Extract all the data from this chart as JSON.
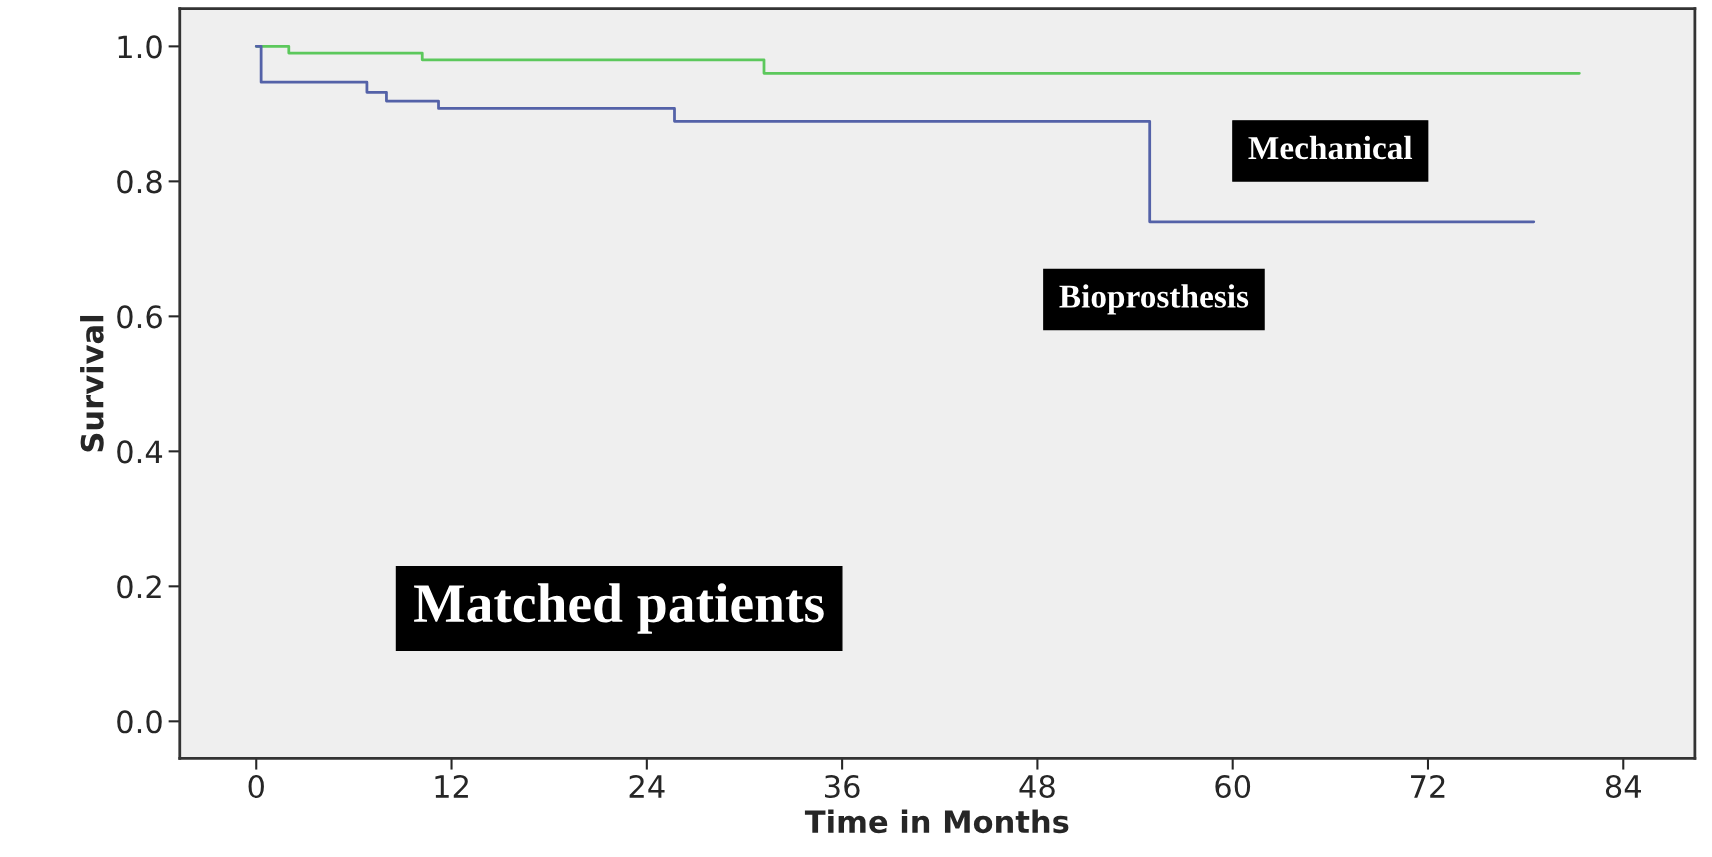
{
  "chart_data": {
    "type": "step",
    "xlabel": "Time in Months",
    "ylabel": "Survival",
    "xlim": [
      -4.7,
      88.4
    ],
    "ylim": [
      -0.055,
      1.056
    ],
    "xticks": [
      0,
      12,
      24,
      36,
      48,
      60,
      72,
      84
    ],
    "yticks": [
      {
        "value": 0,
        "label": "0.0"
      },
      {
        "value": 0.2,
        "label": "0.2"
      },
      {
        "value": 0.4,
        "label": "0.4"
      },
      {
        "value": 0.6,
        "label": "0.6"
      },
      {
        "value": 0.8,
        "label": "0.8"
      },
      {
        "value": 1,
        "label": "1.0"
      }
    ],
    "series": [
      {
        "name": "Mechanical",
        "color": "#5cc85c",
        "x": [
          0,
          2,
          10.2,
          31.2,
          81.3
        ],
        "values": [
          1.0,
          0.99,
          0.98,
          0.96,
          0.96
        ]
      },
      {
        "name": "Bioprosthesis",
        "color": "#5462a8",
        "x": [
          0,
          0.3,
          6.8,
          8,
          11.2,
          25.7,
          54.9,
          78.5
        ],
        "values": [
          1.0,
          0.947,
          0.932,
          0.919,
          0.908,
          0.889,
          0.74,
          0.74
        ]
      }
    ],
    "annotations": [
      "Matched patients"
    ],
    "grid": false,
    "legend": false,
    "marker": "none",
    "line_style": "solid"
  }
}
